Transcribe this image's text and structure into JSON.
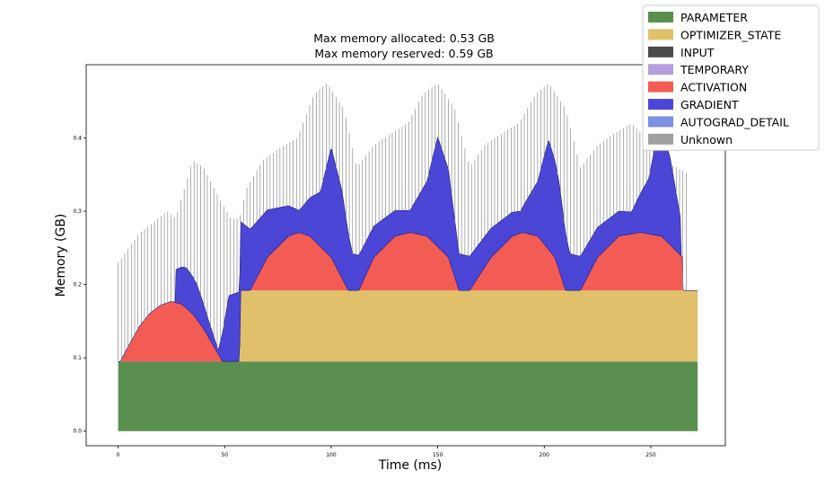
{
  "chart_data": {
    "type": "area",
    "title_lines": [
      "Max memory allocated: 0.53 GB",
      "Max memory reserved: 0.59 GB"
    ],
    "xlabel": "Time (ms)",
    "ylabel": "Memory (GB)",
    "xlim": [
      -15,
      285
    ],
    "ylim": [
      -0.02,
      0.5
    ],
    "x_ticks": [
      0,
      50,
      100,
      150,
      200,
      250
    ],
    "y_ticks": [
      0.0,
      0.1,
      0.2,
      0.3,
      0.4
    ],
    "x_tick_labels": [
      "0",
      "50",
      "100",
      "150",
      "200",
      "250"
    ],
    "y_tick_labels": [
      "0.0",
      "0.1",
      "0.2",
      "0.3",
      "0.4"
    ],
    "x_range": [
      0,
      272
    ],
    "legend_position": "top-right",
    "legend": [
      {
        "name": "PARAMETER",
        "color": "#5a8f50"
      },
      {
        "name": "OPTIMIZER_STATE",
        "color": "#e0c06a"
      },
      {
        "name": "INPUT",
        "color": "#4a4a4a"
      },
      {
        "name": "TEMPORARY",
        "color": "#b59ee0"
      },
      {
        "name": "ACTIVATION",
        "color": "#f25c54"
      },
      {
        "name": "GRADIENT",
        "color": "#4b46d6"
      },
      {
        "name": "AUTOGRAD_DETAIL",
        "color": "#7b8fe3"
      },
      {
        "name": "Unknown",
        "color": "#a0a0a0"
      }
    ],
    "series": [
      {
        "name": "PARAMETER",
        "x": [
          0,
          272
        ],
        "y": [
          0.095,
          0.095
        ]
      },
      {
        "name": "OPTIMIZER_STATE",
        "x": [
          0,
          57,
          57.5,
          272
        ],
        "y": [
          0,
          0,
          0.097,
          0.097
        ]
      },
      {
        "name": "ACTIVATION",
        "x": [
          1,
          5,
          10,
          15,
          20,
          25,
          30,
          35,
          40,
          45,
          49,
          62,
          70,
          80,
          85,
          90,
          100,
          108,
          113,
          120,
          130,
          137,
          145,
          155,
          160,
          165,
          175,
          185,
          190,
          197,
          205,
          210,
          217,
          225,
          235,
          245,
          255,
          265
        ],
        "y": [
          0,
          0.022,
          0.048,
          0.066,
          0.077,
          0.082,
          0.078,
          0.065,
          0.045,
          0.02,
          0,
          0,
          0.045,
          0.074,
          0.079,
          0.074,
          0.045,
          0,
          0,
          0.045,
          0.074,
          0.079,
          0.074,
          0.045,
          0,
          0,
          0.045,
          0.074,
          0.079,
          0.074,
          0.045,
          0,
          0,
          0.045,
          0.074,
          0.079,
          0.074,
          0.045
        ]
      },
      {
        "name": "GRADIENT",
        "x": [
          27,
          32,
          37,
          42,
          47,
          52,
          57,
          85,
          95,
          100,
          105,
          110,
          137,
          145,
          150,
          155,
          160,
          189,
          197,
          202,
          207,
          212,
          241,
          249,
          254,
          259,
          264
        ],
        "y": [
          0.045,
          0.055,
          0.048,
          0.025,
          0.005,
          0.09,
          0.095,
          0.03,
          0.075,
          0.15,
          0.12,
          0.05,
          0.03,
          0.075,
          0.15,
          0.12,
          0.05,
          0.03,
          0.075,
          0.15,
          0.12,
          0.05,
          0.03,
          0.075,
          0.15,
          0.12,
          0.05
        ]
      },
      {
        "name": "Unknown",
        "x": [
          0,
          10,
          23,
          27,
          35,
          40,
          47,
          53,
          57,
          60,
          68,
          78,
          84,
          92,
          98,
          106,
          112,
          120,
          130,
          136,
          143,
          150,
          158,
          165,
          172,
          182,
          188,
          196,
          202,
          210,
          217,
          225,
          235,
          241,
          248,
          254,
          262,
          268
        ],
        "y": [
          0.23,
          0.27,
          0.3,
          0.29,
          0.37,
          0.36,
          0.32,
          0.29,
          0.29,
          0.33,
          0.37,
          0.39,
          0.4,
          0.46,
          0.475,
          0.44,
          0.36,
          0.39,
          0.41,
          0.42,
          0.46,
          0.475,
          0.44,
          0.36,
          0.39,
          0.41,
          0.42,
          0.46,
          0.475,
          0.44,
          0.36,
          0.39,
          0.41,
          0.42,
          0.4,
          0.37,
          0.36,
          0.35
        ]
      }
    ]
  }
}
